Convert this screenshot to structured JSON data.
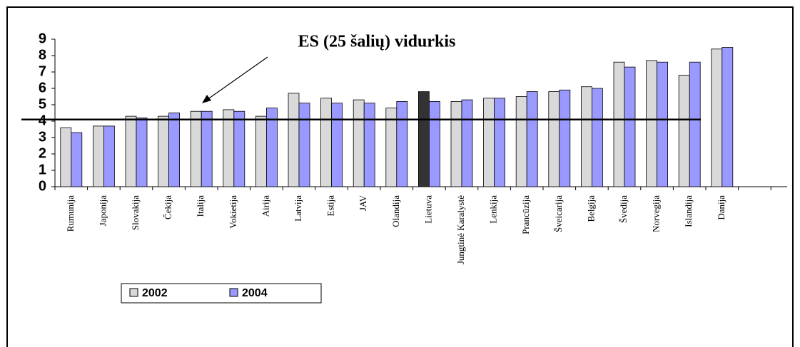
{
  "chart_data": {
    "type": "bar",
    "categories": [
      "Rumunija",
      "Japonija",
      "Slovakija",
      "Čekija",
      "Italija",
      "Vokietija",
      "Airija",
      "Latvija",
      "Estija",
      "JAV",
      "Olandija",
      "Lietuva",
      "Jungtinė Karalystė",
      "Lenkija",
      "Prancūzija",
      "Šveicarija",
      "Belgija",
      "Švedija",
      "Norvegija",
      "Islandija",
      "Danija"
    ],
    "series": [
      {
        "name": "2002",
        "color": "#d9d9d9",
        "colors": [
          "#d9d9d9",
          "#d9d9d9",
          "#d9d9d9",
          "#d9d9d9",
          "#d9d9d9",
          "#d9d9d9",
          "#d9d9d9",
          "#d9d9d9",
          "#d9d9d9",
          "#d9d9d9",
          "#d9d9d9",
          "#333333",
          "#d9d9d9",
          "#d9d9d9",
          "#d9d9d9",
          "#d9d9d9",
          "#d9d9d9",
          "#d9d9d9",
          "#d9d9d9",
          "#d9d9d9",
          "#d9d9d9"
        ],
        "values": [
          3.6,
          3.7,
          4.3,
          4.3,
          4.6,
          4.7,
          4.3,
          5.7,
          5.4,
          5.3,
          4.8,
          5.8,
          5.2,
          5.4,
          5.5,
          5.8,
          6.1,
          7.6,
          7.7,
          6.8,
          8.4
        ]
      },
      {
        "name": "2004",
        "color": "#9999ff",
        "values": [
          3.3,
          3.7,
          4.2,
          4.5,
          4.6,
          4.6,
          4.8,
          5.1,
          5.1,
          5.1,
          5.2,
          5.2,
          5.3,
          5.4,
          5.8,
          5.9,
          6.0,
          7.3,
          7.6,
          7.6,
          8.5
        ]
      }
    ],
    "reference_line": {
      "value": 4.1,
      "label": "ES (25 šalių) vidurkis"
    },
    "ylim": [
      0,
      9
    ],
    "yticks": [
      0,
      1,
      2,
      3,
      4,
      5,
      6,
      7,
      8,
      9
    ],
    "legend": "bottom-left"
  }
}
